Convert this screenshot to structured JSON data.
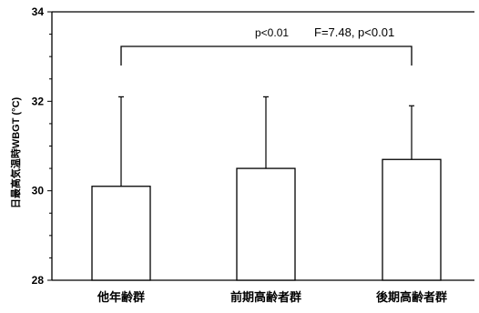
{
  "chart_data": {
    "type": "bar",
    "categories": [
      "他年齢群",
      "前期高齢者群",
      "後期高齢者群"
    ],
    "values": [
      30.1,
      30.5,
      30.7
    ],
    "error_upper": [
      32.1,
      32.1,
      31.9
    ],
    "ylabel": "日最高気温時WBGT (°C)",
    "xlabel": "",
    "title": "",
    "ylim": [
      28,
      34
    ],
    "yticks": [
      28,
      30,
      32,
      34
    ],
    "grid": false,
    "annotations": {
      "pairwise": "p<0.01",
      "anova": "F=7.48, p<0.01"
    }
  }
}
